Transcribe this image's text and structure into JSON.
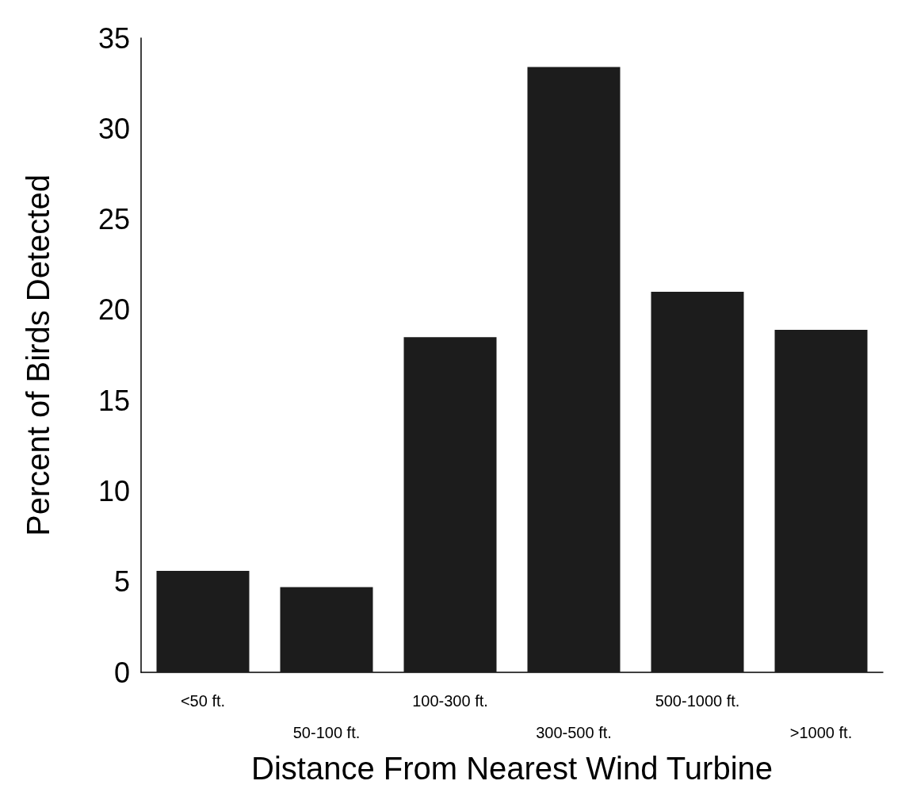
{
  "chart_data": {
    "type": "bar",
    "xlabel": "Distance From Nearest Wind Turbine",
    "ylabel": "Percent of Birds Detected",
    "categories": [
      "<50 ft.",
      "50-100 ft.",
      "100-300 ft.",
      "300-500 ft.",
      "500-1000 ft.",
      ">1000 ft."
    ],
    "values": [
      5.6,
      4.7,
      18.5,
      33.4,
      21.0,
      18.9
    ],
    "color": "#1c1c1c",
    "ylim": [
      0,
      35
    ],
    "yticks": [
      0,
      5,
      10,
      15,
      20,
      25,
      30,
      35
    ]
  }
}
